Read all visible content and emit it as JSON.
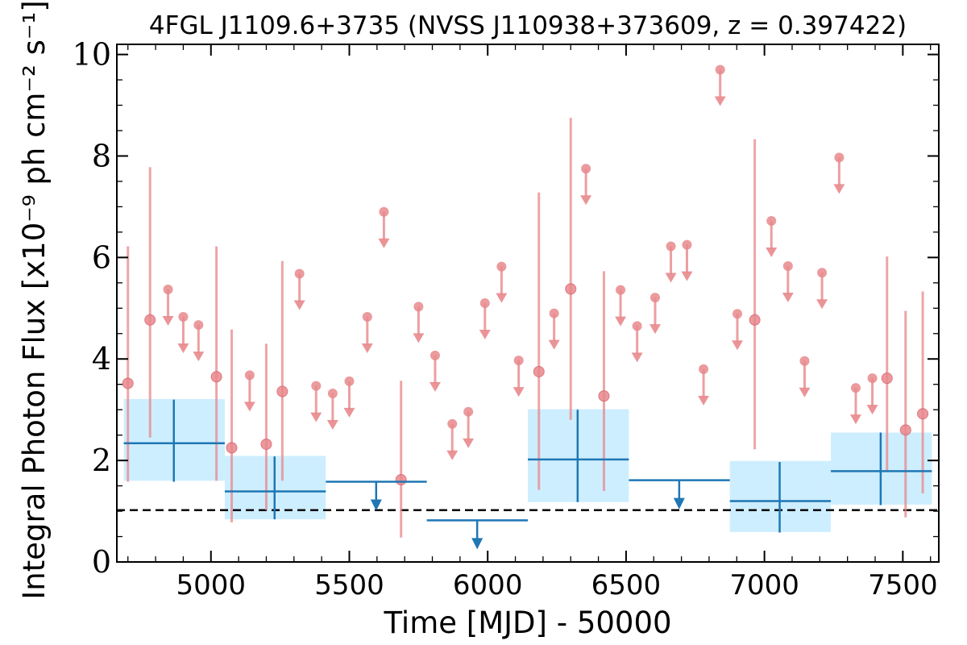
{
  "chart_data": {
    "type": "scatter",
    "title": "4FGL J1109.6+3735 (NVSS J110938+373609, z = 0.397422)",
    "xlabel": "Time [MJD] - 50000",
    "ylabel": "Integral Photon Flux [x10⁻⁹ ph cm⁻² s⁻¹]",
    "xlim": [
      4660,
      7630
    ],
    "ylim": [
      0,
      10.2
    ],
    "x_ticks": [
      "5000",
      "5500",
      "6000",
      "6500",
      "7000",
      "7500"
    ],
    "y_ticks": [
      "0",
      "2",
      "4",
      "6",
      "8",
      "10"
    ],
    "reference_line": {
      "y": 1.02,
      "style": "dashed",
      "color": "#000000"
    },
    "colors": {
      "short_bins": "#e8888c",
      "long_bins": "#1f77b4",
      "long_band": "#cdeeff"
    },
    "grid": false,
    "legend": "none",
    "short_bin_detections": [
      {
        "x": 4700,
        "y": 3.52,
        "lo": 1.58,
        "hi": 6.22
      },
      {
        "x": 4780,
        "y": 4.77,
        "lo": 2.45,
        "hi": 7.78
      },
      {
        "x": 5020,
        "y": 3.65,
        "lo": 1.6,
        "hi": 6.22
      },
      {
        "x": 5075,
        "y": 2.25,
        "lo": 0.78,
        "hi": 4.58
      },
      {
        "x": 5200,
        "y": 2.32,
        "lo": 1.02,
        "hi": 4.3
      },
      {
        "x": 5258,
        "y": 3.36,
        "lo": 1.6,
        "hi": 5.93
      },
      {
        "x": 5687,
        "y": 1.62,
        "lo": 0.48,
        "hi": 3.57
      },
      {
        "x": 6185,
        "y": 3.75,
        "lo": 1.42,
        "hi": 7.28
      },
      {
        "x": 6300,
        "y": 5.38,
        "lo": 2.8,
        "hi": 8.75
      },
      {
        "x": 6420,
        "y": 3.27,
        "lo": 1.4,
        "hi": 5.73
      },
      {
        "x": 6965,
        "y": 4.77,
        "lo": 2.22,
        "hi": 8.33
      },
      {
        "x": 7443,
        "y": 3.62,
        "lo": 1.78,
        "hi": 6.02
      },
      {
        "x": 7510,
        "y": 2.6,
        "lo": 0.88,
        "hi": 4.95
      },
      {
        "x": 7572,
        "y": 2.92,
        "lo": 1.35,
        "hi": 5.33
      }
    ],
    "short_bin_upper_limits": [
      {
        "x": 4845,
        "y": 5.37
      },
      {
        "x": 4900,
        "y": 4.83
      },
      {
        "x": 4955,
        "y": 4.67
      },
      {
        "x": 5140,
        "y": 3.68
      },
      {
        "x": 5320,
        "y": 5.68
      },
      {
        "x": 5380,
        "y": 3.47
      },
      {
        "x": 5440,
        "y": 3.32
      },
      {
        "x": 5500,
        "y": 3.56
      },
      {
        "x": 5565,
        "y": 4.83
      },
      {
        "x": 5625,
        "y": 6.9
      },
      {
        "x": 5750,
        "y": 5.03
      },
      {
        "x": 5810,
        "y": 4.07
      },
      {
        "x": 5872,
        "y": 2.72
      },
      {
        "x": 5930,
        "y": 2.96
      },
      {
        "x": 5990,
        "y": 5.1
      },
      {
        "x": 6050,
        "y": 5.82
      },
      {
        "x": 6112,
        "y": 3.97
      },
      {
        "x": 6240,
        "y": 4.9
      },
      {
        "x": 6355,
        "y": 7.75
      },
      {
        "x": 6480,
        "y": 5.36
      },
      {
        "x": 6540,
        "y": 4.65
      },
      {
        "x": 6605,
        "y": 5.21
      },
      {
        "x": 6662,
        "y": 6.22
      },
      {
        "x": 6720,
        "y": 6.25
      },
      {
        "x": 6780,
        "y": 3.8
      },
      {
        "x": 6840,
        "y": 9.7
      },
      {
        "x": 6902,
        "y": 4.89
      },
      {
        "x": 7025,
        "y": 6.72
      },
      {
        "x": 7085,
        "y": 5.83
      },
      {
        "x": 7145,
        "y": 3.96
      },
      {
        "x": 7208,
        "y": 5.7
      },
      {
        "x": 7270,
        "y": 7.97
      },
      {
        "x": 7330,
        "y": 3.43
      },
      {
        "x": 7390,
        "y": 3.62
      }
    ],
    "long_bin_detections": [
      {
        "x_start": 4685,
        "x_end": 5050,
        "x": 4866,
        "y": 2.34,
        "lo": 1.58,
        "hi": 3.2,
        "band_lo": 1.6,
        "band_hi": 3.21
      },
      {
        "x_start": 5050,
        "x_end": 5415,
        "x": 5230,
        "y": 1.39,
        "lo": 0.84,
        "hi": 2.08,
        "band_lo": 0.84,
        "band_hi": 2.09
      },
      {
        "x_start": 6145,
        "x_end": 6510,
        "x": 6325,
        "y": 2.02,
        "lo": 1.18,
        "hi": 3.0,
        "band_lo": 1.18,
        "band_hi": 3.01
      },
      {
        "x_start": 6875,
        "x_end": 7240,
        "x": 7055,
        "y": 1.2,
        "lo": 0.58,
        "hi": 1.97,
        "band_lo": 0.59,
        "band_hi": 1.99
      },
      {
        "x_start": 7240,
        "x_end": 7605,
        "x": 7420,
        "y": 1.79,
        "lo": 1.12,
        "hi": 2.55,
        "band_lo": 1.13,
        "band_hi": 2.55
      }
    ],
    "long_bin_upper_limits": [
      {
        "x_start": 5415,
        "x_end": 5780,
        "x": 5597,
        "y": 1.58
      },
      {
        "x_start": 5780,
        "x_end": 6145,
        "x": 5962,
        "y": 0.82
      },
      {
        "x_start": 6510,
        "x_end": 6875,
        "x": 6692,
        "y": 1.61
      }
    ]
  }
}
